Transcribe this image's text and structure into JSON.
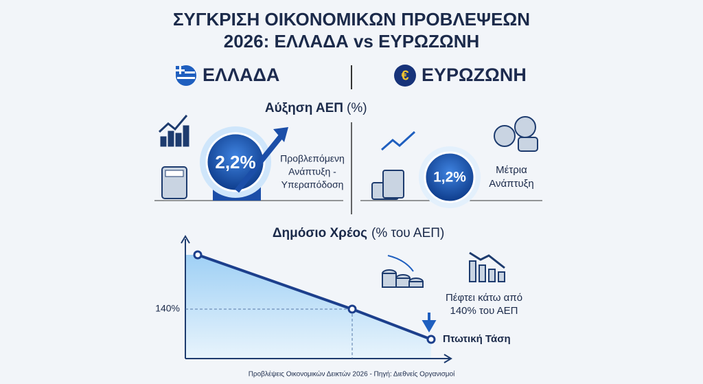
{
  "header": {
    "title_line1": "ΣΥΓΚΡΙΣΗ ΟΙΚΟΝΟΜΙΚΩΝ ΠΡΟΒΛΕΨΕΩΝ",
    "title_line2": "2026: ΕΛΛΑΔΑ vs ΕΥΡΩΖΩΝΗ"
  },
  "columns": {
    "greece": "ΕΛΛΑΔΑ",
    "eurozone": "ΕΥΡΩΖΩΝΗ",
    "euro_symbol": "€"
  },
  "gdp": {
    "title": "Αύξηση ΑΕΠ",
    "unit": "(%)",
    "greece": {
      "value": "2,2%",
      "label": [
        "Προβλεπόμενη",
        "Ανάπτυξη -",
        "Υπεραπόδοση"
      ]
    },
    "eurozone": {
      "value": "1,2%",
      "label": [
        "Μέτρια",
        "Ανάπτυξη"
      ]
    }
  },
  "debt": {
    "title": "Δημόσιο Χρέος",
    "unit": "(% του ΑΕΠ)",
    "reference": "140%",
    "note": [
      "Πέφτει κάτω από",
      "140% του ΑΕΠ"
    ],
    "trend": "Πτωτική Τάση"
  },
  "footer": "Προβλέψεις Οικονομικών Δεικτών 2026 - Πηγή: Διεθνείς Οργανισμοί"
}
